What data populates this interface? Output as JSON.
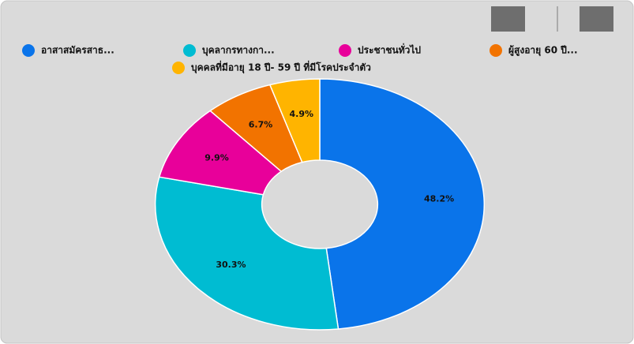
{
  "chart_data": {
    "type": "donut",
    "categories": [
      "อาสาสมัครสาธ...",
      "บุคลากรทางกา...",
      "ประชาชนทั่วไป",
      "ผู้สูงอายุ 60 ปี...",
      "บุคคลที่มีอายุ 18 ปี- 59 ปี ที่มีโรคประจำตัว"
    ],
    "values": [
      48.2,
      30.3,
      9.9,
      6.7,
      4.9
    ],
    "value_labels": [
      "48.2%",
      "30.3%",
      "9.9%",
      "6.7%",
      "4.9%"
    ],
    "colors": [
      "#0a74ea",
      "#00bcd2",
      "#e8009a",
      "#f27300",
      "#ffb400"
    ],
    "legend": "top"
  }
}
